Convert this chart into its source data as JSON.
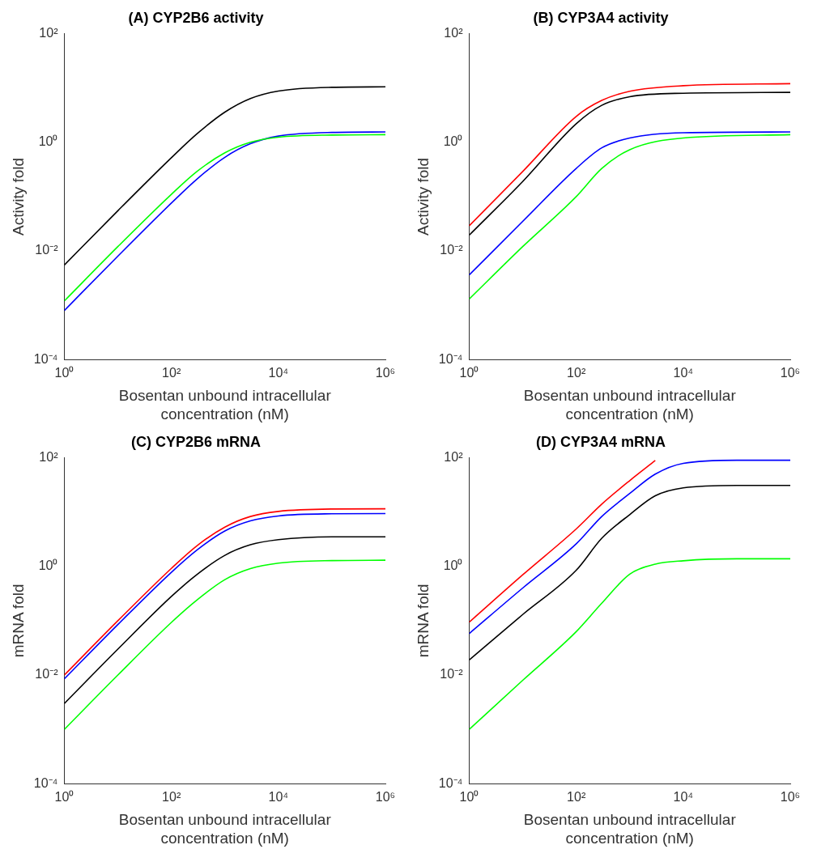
{
  "chart_data": [
    {
      "type": "line",
      "title": "(A) CYP2B6 activity",
      "xlabel": "Bosentan unbound intracellular\nconcentration (nM)",
      "ylabel": "Activity fold",
      "log": "xy",
      "grid": false,
      "legend": false,
      "marker": "none",
      "line_style": "solid",
      "x": [
        1,
        10,
        100,
        300,
        1000,
        3000,
        10000,
        100000,
        1000000
      ],
      "xlim": [
        1,
        1000000
      ],
      "xticks": [
        {
          "value": 1,
          "label": "10⁰"
        },
        {
          "value": 100,
          "label": "10²"
        },
        {
          "value": 10000,
          "label": "10⁴"
        },
        {
          "value": 1000000,
          "label": "10⁶"
        }
      ],
      "ylim": [
        0.0001,
        100
      ],
      "yticks": [
        {
          "value": 0.0001,
          "label": "10⁻⁴"
        },
        {
          "value": 0.01,
          "label": "10⁻²"
        },
        {
          "value": 1,
          "label": "10⁰"
        },
        {
          "value": 100,
          "label": "10²"
        }
      ],
      "series": [
        {
          "color": "#000000",
          "values": [
            0.0055,
            0.055,
            0.52,
            1.43,
            3.6,
            6.4,
            8.8,
            10.3,
            10.5
          ]
        },
        {
          "color": "#00ff00",
          "values": [
            0.0012,
            0.012,
            0.11,
            0.29,
            0.64,
            1.0,
            1.24,
            1.36,
            1.38
          ]
        },
        {
          "color": "#0000ff",
          "values": [
            0.0008,
            0.008,
            0.076,
            0.21,
            0.53,
            0.94,
            1.3,
            1.52,
            1.55
          ]
        }
      ]
    },
    {
      "type": "line",
      "title": "(B) CYP3A4 activity",
      "xlabel": "Bosentan unbound intracellular\nconcentration (nM)",
      "ylabel": "Activity fold",
      "log": "xy",
      "grid": false,
      "legend": false,
      "marker": "none",
      "line_style": "solid",
      "x": [
        1,
        10,
        100,
        300,
        1000,
        10000,
        1000000
      ],
      "xlim": [
        1,
        1000000
      ],
      "xticks": [
        {
          "value": 1,
          "label": "10⁰"
        },
        {
          "value": 100,
          "label": "10²"
        },
        {
          "value": 10000,
          "label": "10⁴"
        },
        {
          "value": 1000000,
          "label": "10⁶"
        }
      ],
      "ylim": [
        0.0001,
        100
      ],
      "yticks": [
        {
          "value": 0.0001,
          "label": "10⁻⁴"
        },
        {
          "value": 0.01,
          "label": "10⁻²"
        },
        {
          "value": 1,
          "label": "10⁰"
        },
        {
          "value": 100,
          "label": "10²"
        }
      ],
      "series": [
        {
          "color": "#000000",
          "values": [
            0.0195,
            0.19,
            2.2,
            4.8,
            6.9,
            8,
            8.3
          ]
        },
        {
          "color": "#ff0000",
          "values": [
            0.029,
            0.29,
            3.0,
            5.9,
            8.7,
            11,
            12
          ]
        },
        {
          "color": "#0000ff",
          "values": [
            0.0036,
            0.035,
            0.33,
            0.79,
            1.2,
            1.5,
            1.55
          ]
        },
        {
          "color": "#00ff00",
          "values": [
            0.0013,
            0.012,
            0.1,
            0.33,
            0.73,
            1.2,
            1.38
          ]
        }
      ]
    },
    {
      "type": "line",
      "title": "(C) CYP2B6 mRNA",
      "xlabel": "Bosentan unbound intracellular\nconcentration (nM)",
      "ylabel": "mRNA fold",
      "log": "xy",
      "grid": false,
      "legend": false,
      "marker": "none",
      "line_style": "solid",
      "x": [
        1,
        10,
        100,
        300,
        1000,
        3000,
        10000,
        100000,
        1000000
      ],
      "xlim": [
        1,
        1000000
      ],
      "xticks": [
        {
          "value": 1,
          "label": "10⁰"
        },
        {
          "value": 100,
          "label": "10²"
        },
        {
          "value": 10000,
          "label": "10⁴"
        },
        {
          "value": 1000000,
          "label": "10⁶"
        }
      ],
      "ylim": [
        0.0001,
        100
      ],
      "yticks": [
        {
          "value": 0.0001,
          "label": "10⁻⁴"
        },
        {
          "value": 0.01,
          "label": "10⁻²"
        },
        {
          "value": 1,
          "label": "10⁰"
        },
        {
          "value": 100,
          "label": "10²"
        }
      ],
      "series": [
        {
          "color": "#000000",
          "values": [
            0.003,
            0.03,
            0.28,
            0.71,
            1.6,
            2.5,
            3.1,
            3.5,
            3.5
          ]
        },
        {
          "color": "#ff0000",
          "values": [
            0.01,
            0.1,
            0.92,
            2.4,
            5.3,
            8.3,
            10.3,
            11.4,
            11.5
          ]
        },
        {
          "color": "#0000ff",
          "values": [
            0.0085,
            0.085,
            0.78,
            2.0,
            4.5,
            6.9,
            8.5,
            9.3,
            9.4
          ]
        },
        {
          "color": "#00ff00",
          "values": [
            0.001,
            0.01,
            0.093,
            0.24,
            0.57,
            0.91,
            1.15,
            1.28,
            1.3
          ]
        }
      ]
    },
    {
      "type": "line",
      "title": "(D) CYP3A4 mRNA",
      "xlabel": "Bosentan unbound intracellular\nconcentration (nM)",
      "ylabel": "mRNA fold",
      "log": "xy",
      "grid": false,
      "legend": false,
      "marker": "none",
      "line_style": "solid",
      "x": [
        1,
        10,
        100,
        300,
        1000,
        3000,
        10000,
        100000,
        1000000
      ],
      "xlim": [
        1,
        1000000
      ],
      "xticks": [
        {
          "value": 1,
          "label": "10⁰"
        },
        {
          "value": 100,
          "label": "10²"
        },
        {
          "value": 10000,
          "label": "10⁴"
        },
        {
          "value": 1000000,
          "label": "10⁶"
        }
      ],
      "ylim": [
        0.0001,
        100
      ],
      "yticks": [
        {
          "value": 0.0001,
          "label": "10⁻⁴"
        },
        {
          "value": 0.01,
          "label": "10⁻²"
        },
        {
          "value": 1,
          "label": "10⁰"
        },
        {
          "value": 100,
          "label": "10²"
        }
      ],
      "series": [
        {
          "color": "#000000",
          "values": [
            0.019,
            0.13,
            0.85,
            3.3,
            9,
            20,
            28,
            31,
            31
          ]
        },
        {
          "color": "#ff0000",
          "values": [
            0.094,
            0.7,
            4.9,
            14,
            38,
            89,
            null,
            null,
            null
          ]
        },
        {
          "color": "#0000ff",
          "values": [
            0.058,
            0.4,
            2.6,
            8.3,
            22,
            50,
            79,
            90,
            90
          ]
        },
        {
          "color": "#00ff00",
          "values": [
            0.001,
            0.008,
            0.063,
            0.21,
            0.72,
            1.1,
            1.27,
            1.38,
            1.38
          ]
        }
      ]
    }
  ]
}
